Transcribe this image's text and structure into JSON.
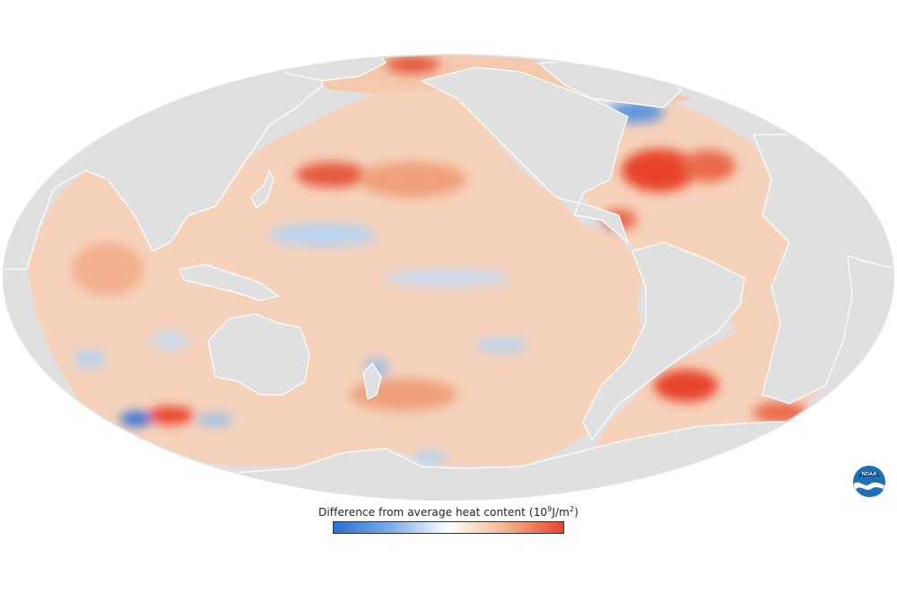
{
  "legend": {
    "title": "Difference from average heat content",
    "units_base": "(10",
    "units_exp": "9",
    "units_mid": "J/m",
    "units_exp2": "2",
    "units_end": ")",
    "colors": [
      "#2a6fd4",
      "#7eaee8",
      "#ffffff",
      "#f3b48d",
      "#e8442c"
    ]
  },
  "map": {
    "projection": "Mollweide",
    "ocean_base_color": "#f6d2bb",
    "land_color": "#e0e0e0"
  },
  "logo": {
    "text": "NOAA",
    "icon": "noaa-logo-icon"
  }
}
